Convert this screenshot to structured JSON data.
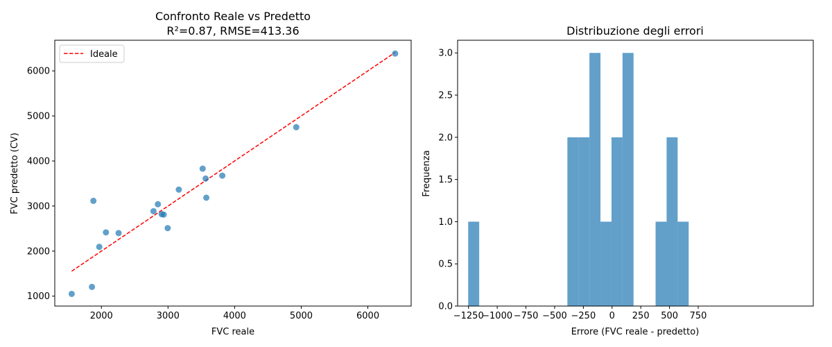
{
  "chart_data": [
    {
      "type": "scatter",
      "title_lines": [
        "Confronto Reale vs Predetto",
        "R²=0.87, RMSE=413.36"
      ],
      "xlabel": "FVC reale",
      "ylabel": "FVC predetto (CV)",
      "xlim": [
        1300,
        6650
      ],
      "ylim": [
        780,
        6680
      ],
      "xticks": [
        2000,
        3000,
        4000,
        5000,
        6000
      ],
      "yticks": [
        1000,
        2000,
        3000,
        4000,
        5000,
        6000
      ],
      "points": [
        {
          "x": 1554,
          "y": 1050
        },
        {
          "x": 1858,
          "y": 1205
        },
        {
          "x": 1880,
          "y": 3115
        },
        {
          "x": 1968,
          "y": 2095
        },
        {
          "x": 2068,
          "y": 2415
        },
        {
          "x": 2258,
          "y": 2400
        },
        {
          "x": 2782,
          "y": 2885
        },
        {
          "x": 2848,
          "y": 3040
        },
        {
          "x": 2905,
          "y": 2820
        },
        {
          "x": 2935,
          "y": 2810
        },
        {
          "x": 2995,
          "y": 2510
        },
        {
          "x": 3162,
          "y": 3365
        },
        {
          "x": 3520,
          "y": 3830
        },
        {
          "x": 3565,
          "y": 3610
        },
        {
          "x": 3575,
          "y": 3185
        },
        {
          "x": 3815,
          "y": 3675
        },
        {
          "x": 4925,
          "y": 4750
        },
        {
          "x": 6410,
          "y": 6385
        }
      ],
      "ideal_line": {
        "name": "Ideale",
        "x": [
          1554,
          6410
        ],
        "y": [
          1554,
          6410
        ],
        "color": "#ff0000"
      },
      "point_color": "#1f77b4",
      "legend": {
        "entries": [
          "Ideale"
        ],
        "position": "upper-left"
      },
      "grid": false
    },
    {
      "type": "bar",
      "subtype": "histogram",
      "title": "Distribuzione degli errori",
      "xlabel": "Errore (FVC reale - predetto)",
      "ylabel": "Frequenza",
      "xlim": [
        -1345,
        1752
      ],
      "ylim": [
        0,
        3.15
      ],
      "xticks": [
        -1250,
        -1000,
        -750,
        -500,
        -250,
        0,
        250,
        500,
        750
      ],
      "xtick_labels": [
        "−1250",
        "−1000",
        "−750",
        "−500",
        "−250",
        "0",
        "250",
        "500",
        "750"
      ],
      "yticks": [
        0.0,
        0.5,
        1.0,
        1.5,
        2.0,
        2.5,
        3.0
      ],
      "ytick_labels": [
        "0.0",
        "0.5",
        "1.0",
        "1.5",
        "2.0",
        "2.5",
        "3.0"
      ],
      "bin_edges": [
        -1253,
        -1157,
        -1061,
        -965,
        -869,
        -773,
        -677,
        -581,
        -485,
        -389,
        -293,
        -197,
        -101,
        -5,
        91,
        187,
        283,
        379,
        475,
        571,
        667
      ],
      "counts": [
        1,
        0,
        0,
        0,
        0,
        0,
        0,
        0,
        0,
        2,
        2,
        3,
        1,
        2,
        3,
        0,
        0,
        1,
        2,
        1
      ],
      "bar_color": "#1f77b4",
      "bar_opacity": 0.7,
      "grid": false
    }
  ]
}
